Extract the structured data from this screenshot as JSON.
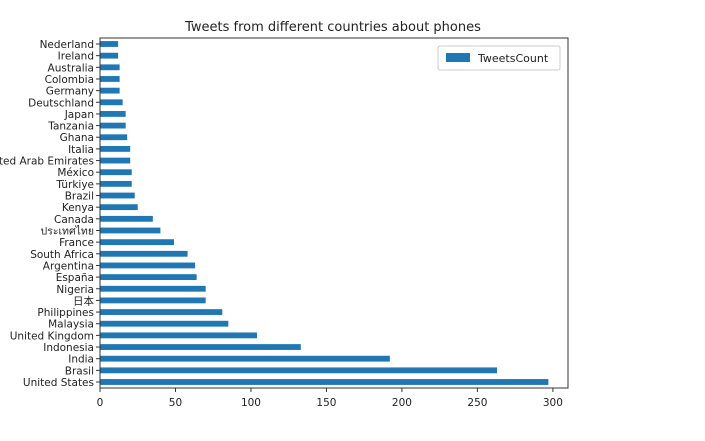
{
  "chart_data": {
    "type": "bar",
    "orientation": "horizontal",
    "title": "Tweets from different countries about phones",
    "xlabel": "",
    "ylabel": "",
    "xlim": [
      0,
      310
    ],
    "xticks": [
      0,
      50,
      100,
      150,
      200,
      250,
      300
    ],
    "grid": false,
    "legend_position": "top-right",
    "bar_color": "#1f77b4",
    "series": [
      {
        "name": "TweetsCount",
        "values": [
          297,
          263,
          192,
          133,
          104,
          85,
          81,
          70,
          70,
          64,
          63,
          58,
          49,
          40,
          35,
          25,
          23,
          21,
          21,
          20,
          20,
          18,
          17,
          17,
          15,
          13,
          13,
          13,
          12,
          12
        ]
      }
    ],
    "categories": [
      "United States",
      "Brasil",
      "India",
      "Indonesia",
      "United Kingdom",
      "Malaysia",
      "Philippines",
      "日本",
      "Nigeria",
      "España",
      "Argentina",
      "South Africa",
      "France",
      "ประเทศไทย",
      "Canada",
      "Kenya",
      "Brazil",
      "Türkiye",
      "México",
      "United Arab Emirates",
      "Italia",
      "Ghana",
      "Tanzania",
      "Japan",
      "Deutschland",
      "Germany",
      "Colombia",
      "Australia",
      "Ireland",
      "Nederland"
    ]
  }
}
